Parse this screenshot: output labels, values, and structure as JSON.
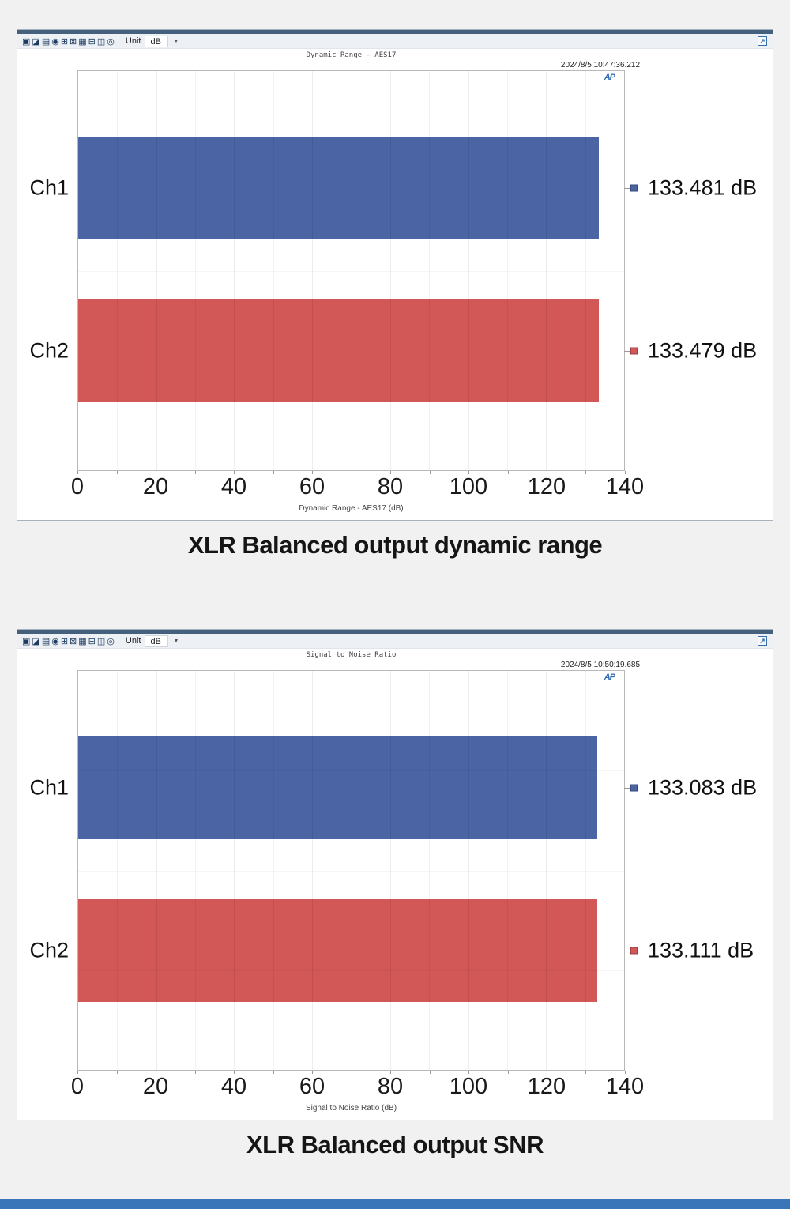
{
  "chart_data": [
    {
      "type": "bar",
      "orientation": "horizontal",
      "title": "Dynamic Range - AES17",
      "categories": [
        "Ch1",
        "Ch2"
      ],
      "values": [
        133.481,
        133.479
      ],
      "value_labels": [
        "133.481 dB",
        "133.479 dB"
      ],
      "series_colors": [
        "#4a64a4",
        "#d25757"
      ],
      "xlabel": "Dynamic Range - AES17 (dB)",
      "xlim": [
        0,
        140
      ],
      "xticks": [
        0,
        20,
        40,
        60,
        80,
        100,
        120,
        140
      ],
      "grid": "vertical, minor every 10, light gray",
      "legend_position": "none"
    },
    {
      "type": "bar",
      "orientation": "horizontal",
      "title": "Signal to Noise Ratio",
      "categories": [
        "Ch1",
        "Ch2"
      ],
      "values": [
        133.083,
        133.111
      ],
      "value_labels": [
        "133.083 dB",
        "133.111 dB"
      ],
      "series_colors": [
        "#4a64a4",
        "#d25757"
      ],
      "xlabel": "Signal to Noise Ratio (dB)",
      "xlim": [
        0,
        140
      ],
      "xticks": [
        0,
        20,
        40,
        60,
        80,
        100,
        120,
        140
      ],
      "grid": "vertical, minor every 10, light gray",
      "legend_position": "none"
    }
  ],
  "windows": [
    {
      "timestamp": "2024/8/5 10:47:36.212",
      "caption": "XLR Balanced output dynamic range"
    },
    {
      "timestamp": "2024/8/5 10:50:19.685",
      "caption": "XLR Balanced output SNR"
    }
  ],
  "toolbar": {
    "unit_label": "Unit",
    "unit_value": "dB",
    "icons": [
      "save-icon",
      "edit-icon",
      "print-icon",
      "zoom-icon",
      "collapse-icon",
      "expand-icon",
      "table-icon",
      "display-mode-icon",
      "graph-style-icon",
      "settings-icon"
    ]
  },
  "logo_text": "AP",
  "colors": {
    "ch1_bar": "#4a64a4",
    "ch2_bar": "#d25757",
    "window_strip": "#44607c",
    "footer_bar": "#3a75ba"
  }
}
